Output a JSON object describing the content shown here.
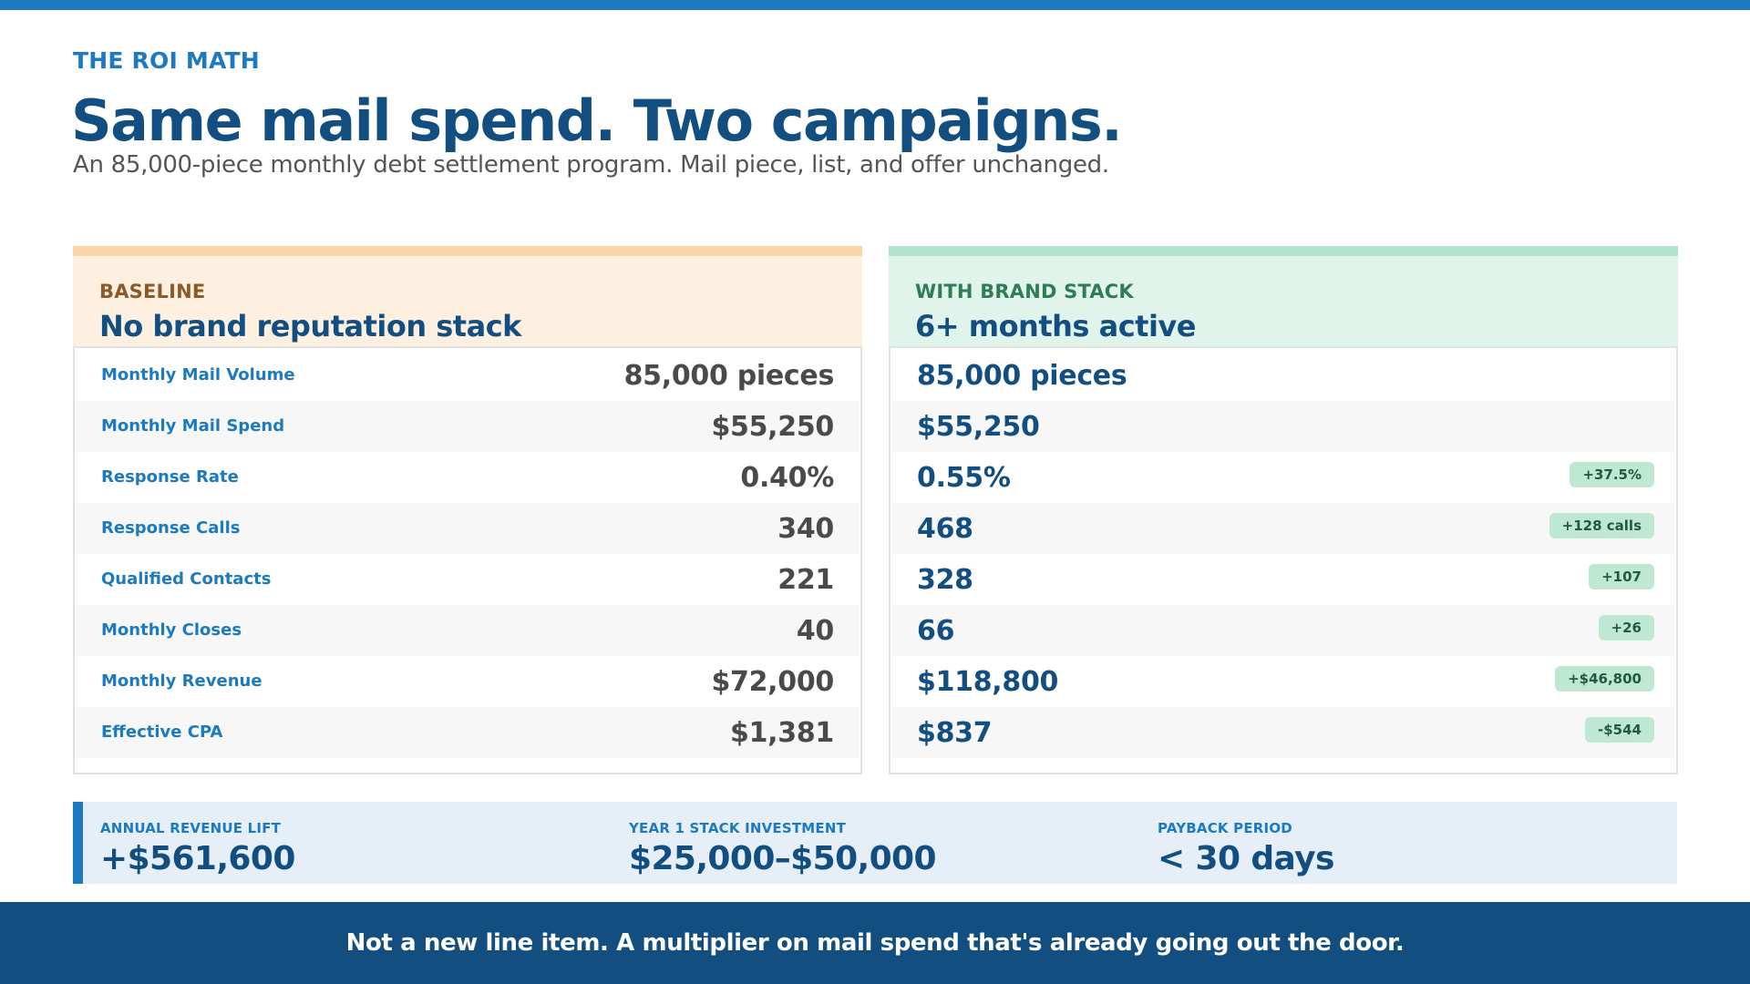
{
  "header": {
    "eyebrow": "THE ROI MATH",
    "title": "Same mail spend. Two campaigns.",
    "subtitle": "An 85,000-piece monthly debt settlement program. Mail piece, list, and offer unchanged."
  },
  "baseline": {
    "kicker": "BASELINE",
    "title": "No brand reputation stack",
    "rows": [
      {
        "label": "Monthly Mail Volume",
        "value": "85,000 pieces"
      },
      {
        "label": "Monthly Mail Spend",
        "value": "$55,250"
      },
      {
        "label": "Response Rate",
        "value": "0.40%"
      },
      {
        "label": "Response Calls",
        "value": "340"
      },
      {
        "label": "Qualified Contacts",
        "value": "221"
      },
      {
        "label": "Monthly Closes",
        "value": "40"
      },
      {
        "label": "Monthly Revenue",
        "value": "$72,000"
      },
      {
        "label": "Effective CPA",
        "value": "$1,381"
      }
    ]
  },
  "stack": {
    "kicker": "WITH BRAND STACK",
    "title": "6+ months active",
    "rows": [
      {
        "value": "85,000 pieces",
        "delta": ""
      },
      {
        "value": "$55,250",
        "delta": ""
      },
      {
        "value": "0.55%",
        "delta": "+37.5%"
      },
      {
        "value": "468",
        "delta": "+128 calls"
      },
      {
        "value": "328",
        "delta": "+107"
      },
      {
        "value": "66",
        "delta": "+26"
      },
      {
        "value": "$118,800",
        "delta": "+$46,800"
      },
      {
        "value": "$837",
        "delta": "-$544"
      }
    ]
  },
  "summary": [
    {
      "label": "ANNUAL REVENUE LIFT",
      "value": "+$561,600"
    },
    {
      "label": "YEAR 1 STACK INVESTMENT",
      "value": "$25,000–$50,000"
    },
    {
      "label": "PAYBACK PERIOD",
      "value": "< 30 days"
    }
  ],
  "footer": {
    "text": "Not a new line item. A multiplier on mail spend that's already going out the door."
  },
  "colors": {
    "brand_blue": "#1c7ac0",
    "navy": "#124f80",
    "baseline_tint": "#fdf0e0",
    "stack_tint": "#e1f4ec",
    "delta_badge": "#bfe8d4"
  }
}
